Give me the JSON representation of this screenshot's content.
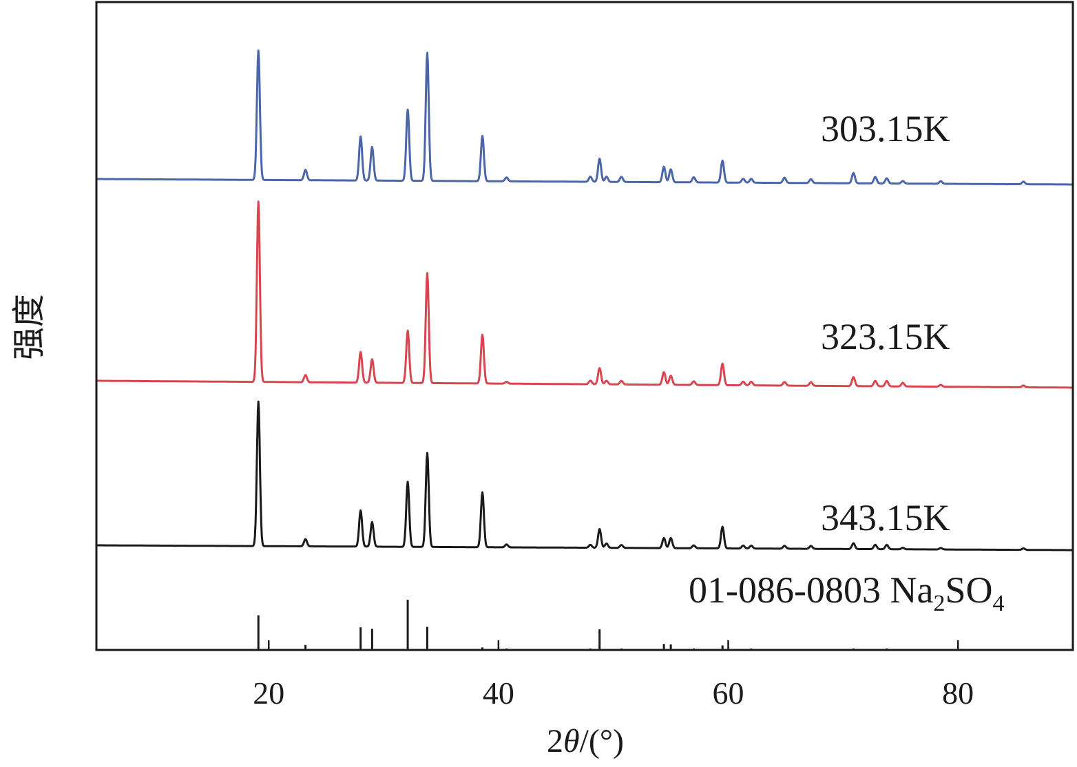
{
  "chart_data": {
    "type": "line",
    "xlabel_prefix": "2",
    "xlabel_var": "θ",
    "xlabel_unit": "/(°)",
    "ylabel": "强度",
    "xlim": [
      5,
      90
    ],
    "x_ticks": [
      20,
      40,
      60,
      80
    ],
    "x_tick_labels": [
      "20",
      "40",
      "60",
      "80"
    ],
    "grid": false,
    "series": [
      {
        "name": "303.15K",
        "color": "#4a66a8",
        "peaks": [
          {
            "x": 19.1,
            "h": 1.0
          },
          {
            "x": 23.2,
            "h": 0.08
          },
          {
            "x": 28.0,
            "h": 0.34
          },
          {
            "x": 29.0,
            "h": 0.26
          },
          {
            "x": 32.1,
            "h": 0.55
          },
          {
            "x": 33.8,
            "h": 0.99
          },
          {
            "x": 38.6,
            "h": 0.35
          },
          {
            "x": 40.7,
            "h": 0.03
          },
          {
            "x": 48.0,
            "h": 0.04
          },
          {
            "x": 48.8,
            "h": 0.18
          },
          {
            "x": 49.4,
            "h": 0.04
          },
          {
            "x": 50.7,
            "h": 0.04
          },
          {
            "x": 54.4,
            "h": 0.12
          },
          {
            "x": 55.0,
            "h": 0.1
          },
          {
            "x": 57.0,
            "h": 0.04
          },
          {
            "x": 59.5,
            "h": 0.17
          },
          {
            "x": 61.3,
            "h": 0.03
          },
          {
            "x": 62.0,
            "h": 0.03
          },
          {
            "x": 64.9,
            "h": 0.04
          },
          {
            "x": 67.2,
            "h": 0.03
          },
          {
            "x": 70.9,
            "h": 0.08
          },
          {
            "x": 72.8,
            "h": 0.05
          },
          {
            "x": 73.8,
            "h": 0.04
          },
          {
            "x": 75.2,
            "h": 0.02
          },
          {
            "x": 78.5,
            "h": 0.02
          },
          {
            "x": 85.7,
            "h": 0.02
          }
        ]
      },
      {
        "name": "323.15K",
        "color": "#d9454e",
        "peaks": [
          {
            "x": 19.1,
            "h": 1.0
          },
          {
            "x": 23.2,
            "h": 0.04
          },
          {
            "x": 28.0,
            "h": 0.17
          },
          {
            "x": 29.0,
            "h": 0.13
          },
          {
            "x": 32.1,
            "h": 0.29
          },
          {
            "x": 33.8,
            "h": 0.61
          },
          {
            "x": 38.6,
            "h": 0.27
          },
          {
            "x": 40.7,
            "h": 0.01
          },
          {
            "x": 48.0,
            "h": 0.02
          },
          {
            "x": 48.8,
            "h": 0.09
          },
          {
            "x": 49.4,
            "h": 0.02
          },
          {
            "x": 50.7,
            "h": 0.02
          },
          {
            "x": 54.4,
            "h": 0.07
          },
          {
            "x": 55.0,
            "h": 0.05
          },
          {
            "x": 57.0,
            "h": 0.02
          },
          {
            "x": 59.5,
            "h": 0.12
          },
          {
            "x": 61.3,
            "h": 0.02
          },
          {
            "x": 62.0,
            "h": 0.02
          },
          {
            "x": 64.9,
            "h": 0.02
          },
          {
            "x": 67.2,
            "h": 0.02
          },
          {
            "x": 70.9,
            "h": 0.05
          },
          {
            "x": 72.8,
            "h": 0.03
          },
          {
            "x": 73.8,
            "h": 0.03
          },
          {
            "x": 75.2,
            "h": 0.02
          },
          {
            "x": 78.5,
            "h": 0.01
          },
          {
            "x": 85.7,
            "h": 0.01
          }
        ]
      },
      {
        "name": "343.15K",
        "color": "#1a1a1a",
        "peaks": [
          {
            "x": 19.1,
            "h": 1.0
          },
          {
            "x": 23.2,
            "h": 0.05
          },
          {
            "x": 28.0,
            "h": 0.25
          },
          {
            "x": 29.0,
            "h": 0.17
          },
          {
            "x": 32.1,
            "h": 0.45
          },
          {
            "x": 33.8,
            "h": 0.65
          },
          {
            "x": 38.6,
            "h": 0.38
          },
          {
            "x": 40.7,
            "h": 0.02
          },
          {
            "x": 48.0,
            "h": 0.02
          },
          {
            "x": 48.8,
            "h": 0.13
          },
          {
            "x": 49.4,
            "h": 0.03
          },
          {
            "x": 50.7,
            "h": 0.02
          },
          {
            "x": 54.4,
            "h": 0.07
          },
          {
            "x": 55.0,
            "h": 0.07
          },
          {
            "x": 57.0,
            "h": 0.02
          },
          {
            "x": 59.5,
            "h": 0.15
          },
          {
            "x": 61.3,
            "h": 0.02
          },
          {
            "x": 62.0,
            "h": 0.02
          },
          {
            "x": 64.9,
            "h": 0.02
          },
          {
            "x": 67.2,
            "h": 0.02
          },
          {
            "x": 70.9,
            "h": 0.04
          },
          {
            "x": 72.8,
            "h": 0.03
          },
          {
            "x": 73.8,
            "h": 0.03
          },
          {
            "x": 75.2,
            "h": 0.01
          },
          {
            "x": 78.5,
            "h": 0.01
          },
          {
            "x": 85.7,
            "h": 0.01
          }
        ]
      }
    ],
    "reference": {
      "name_prefix": "01-086-0803 Na",
      "name_sub1": "2",
      "name_mid": "SO",
      "name_sub2": "4",
      "color": "#1a1a1a",
      "sticks": [
        {
          "x": 19.1,
          "h": 0.69
        },
        {
          "x": 23.2,
          "h": 0.1
        },
        {
          "x": 28.0,
          "h": 0.45
        },
        {
          "x": 29.0,
          "h": 0.42
        },
        {
          "x": 32.1,
          "h": 1.0
        },
        {
          "x": 33.8,
          "h": 0.46
        },
        {
          "x": 38.6,
          "h": 0.05
        },
        {
          "x": 40.7,
          "h": 0.03
        },
        {
          "x": 48.0,
          "h": 0.03
        },
        {
          "x": 48.8,
          "h": 0.41
        },
        {
          "x": 50.7,
          "h": 0.03
        },
        {
          "x": 54.4,
          "h": 0.12
        },
        {
          "x": 55.0,
          "h": 0.11
        },
        {
          "x": 57.0,
          "h": 0.03
        },
        {
          "x": 59.5,
          "h": 0.09
        },
        {
          "x": 62.0,
          "h": 0.03
        },
        {
          "x": 70.9,
          "h": 0.03
        },
        {
          "x": 72.8,
          "h": 0.02
        },
        {
          "x": 73.8,
          "h": 0.03
        },
        {
          "x": 85.7,
          "h": 0.02
        }
      ]
    }
  }
}
